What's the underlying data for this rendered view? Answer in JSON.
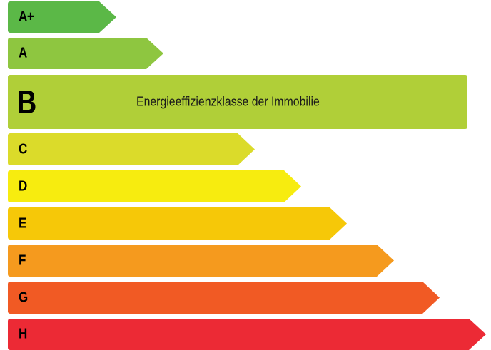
{
  "energy_scale": {
    "active_label": "Energieeffizienzklasse der Immobilie",
    "classes": [
      {
        "letter": "A+",
        "color": "#5bb847"
      },
      {
        "letter": "A",
        "color": "#8ec640"
      },
      {
        "letter": "B",
        "color": "#b0cf38",
        "active": true
      },
      {
        "letter": "C",
        "color": "#dbdb2a"
      },
      {
        "letter": "D",
        "color": "#f7ec0f"
      },
      {
        "letter": "E",
        "color": "#f6c808"
      },
      {
        "letter": "F",
        "color": "#f59a1e"
      },
      {
        "letter": "G",
        "color": "#f15a24"
      },
      {
        "letter": "H",
        "color": "#ec2a35"
      }
    ]
  }
}
